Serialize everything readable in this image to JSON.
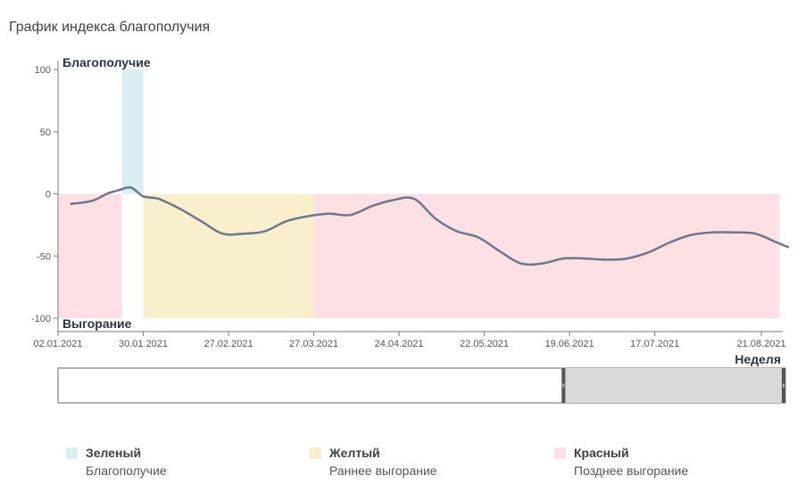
{
  "title": "График индекса благополучия",
  "chart_data": {
    "type": "line",
    "x_start": "02.01.2021",
    "x_end": "28.08.2021",
    "x_ticks": [
      "02.01.2021",
      "30.01.2021",
      "27.02.2021",
      "27.03.2021",
      "24.04.2021",
      "22.05.2021",
      "19.06.2021",
      "17.07.2021",
      "21.08.2021"
    ],
    "ylim": [
      -100,
      100
    ],
    "y_ticks": [
      100,
      50,
      0,
      -50,
      -100
    ],
    "top_label": "Благополучие",
    "bottom_label": "Выгорание",
    "xlabel": "Неделя",
    "bands": [
      {
        "zone": "red",
        "start": "02.01.2021",
        "end": "23.01.2021",
        "y0": -100,
        "y1": 0
      },
      {
        "zone": "green",
        "start": "23.01.2021",
        "end": "30.01.2021",
        "y0": 0,
        "y1": 100
      },
      {
        "zone": "yellow",
        "start": "30.01.2021",
        "end": "27.03.2021",
        "y0": -100,
        "y1": 0
      },
      {
        "zone": "red",
        "start": "27.03.2021",
        "end": "27.08.2021",
        "y0": -100,
        "y1": 0
      }
    ],
    "series": [
      {
        "color": "#6b778d",
        "points": [
          [
            "06.01.2021",
            -8
          ],
          [
            "10.01.2021",
            -7
          ],
          [
            "14.01.2021",
            -5
          ],
          [
            "18.01.2021",
            0
          ],
          [
            "22.01.2021",
            3
          ],
          [
            "26.01.2021",
            5
          ],
          [
            "30.01.2021",
            -2
          ],
          [
            "04.02.2021",
            -4
          ],
          [
            "11.02.2021",
            -12
          ],
          [
            "18.02.2021",
            -22
          ],
          [
            "25.02.2021",
            -32
          ],
          [
            "04.03.2021",
            -32
          ],
          [
            "11.03.2021",
            -30
          ],
          [
            "18.03.2021",
            -22
          ],
          [
            "25.03.2021",
            -18
          ],
          [
            "01.04.2021",
            -16
          ],
          [
            "08.04.2021",
            -17
          ],
          [
            "15.04.2021",
            -10
          ],
          [
            "22.04.2021",
            -5
          ],
          [
            "29.04.2021",
            -4
          ],
          [
            "06.05.2021",
            -20
          ],
          [
            "13.05.2021",
            -30
          ],
          [
            "20.05.2021",
            -35
          ],
          [
            "27.05.2021",
            -46
          ],
          [
            "03.06.2021",
            -56
          ],
          [
            "10.06.2021",
            -56
          ],
          [
            "17.06.2021",
            -52
          ],
          [
            "24.06.2021",
            -52
          ],
          [
            "01.07.2021",
            -53
          ],
          [
            "08.07.2021",
            -52
          ],
          [
            "15.07.2021",
            -47
          ],
          [
            "22.07.2021",
            -39
          ],
          [
            "29.07.2021",
            -33
          ],
          [
            "05.08.2021",
            -31
          ],
          [
            "12.08.2021",
            -31
          ],
          [
            "19.08.2021",
            -32
          ],
          [
            "26.08.2021",
            -39
          ],
          [
            "30.08.2021",
            -43
          ]
        ]
      }
    ]
  },
  "colors": {
    "green": "#d8eef2",
    "yellow": "#f9efcc",
    "red": "#fde0e4",
    "line": "#6b778d",
    "navigator_selection": "#d9d9d9"
  },
  "navigator": {
    "start": "02.01.2021",
    "end": "30.08.2021",
    "selection_start_fraction": 0.6925,
    "selection_end_fraction": 1.0
  },
  "legend": [
    {
      "name": "Зеленый",
      "desc": "Благополучие",
      "zone": "green"
    },
    {
      "name": "Желтый",
      "desc": "Раннее выгорание",
      "zone": "yellow"
    },
    {
      "name": "Красный",
      "desc": "Позднее выгорание",
      "zone": "red"
    }
  ]
}
